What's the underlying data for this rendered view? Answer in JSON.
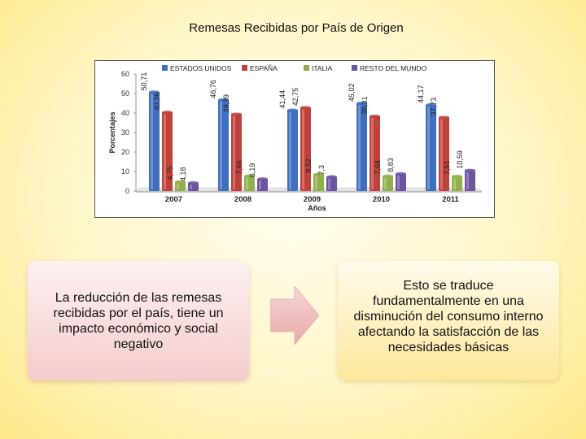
{
  "slide": {
    "title": "Remesas Recibidas por País de Origen",
    "left_text": "La reducción de las remesas recibidas por el país, tiene un impacto económico y social negativo",
    "right_text": "Esto se traduce fundamentalmente en una disminución del consumo interno afectando la satisfacción de las necesidades básicas"
  },
  "colors": {
    "estados_unidos": "#3f6fbf",
    "espana": "#c0403c",
    "italia": "#8fb04a",
    "resto": "#6e54a0",
    "left_box": "#f4cccc",
    "right_box": "#fde79c",
    "arrow": "#e9a9a9"
  },
  "chart_data": {
    "type": "bar",
    "title": "",
    "xlabel": "Años",
    "ylabel": "Porcentajes",
    "ylim": [
      0,
      60
    ],
    "yticks": [
      "0",
      "10",
      "20",
      "30",
      "40",
      "50",
      "60"
    ],
    "categories": [
      "2007",
      "2008",
      "2009",
      "2010",
      "2011"
    ],
    "legend_position": "top",
    "series": [
      {
        "name": "ESTADOS UNIDOS",
        "values": [
          50.71,
          46.76,
          41.44,
          45.02,
          44.17
        ],
        "labels": [
          "50,71",
          "46,76",
          "41,44",
          "45,02",
          "44,17"
        ]
      },
      {
        "name": "ESPAÑA",
        "values": [
          40.36,
          39.39,
          42.75,
          38.31,
          37.73
        ],
        "labels": [
          "40,36",
          "39,39",
          "42,75",
          "38,31",
          "37,73"
        ]
      },
      {
        "name": "ITALIA",
        "values": [
          4.75,
          7.66,
          8.52,
          7.64,
          7.51
        ],
        "labels": [
          "4,75",
          "7,66",
          "8,52",
          "7,64",
          "7,51"
        ]
      },
      {
        "name": "RESTO DEL MUNDO",
        "values": [
          4.18,
          6.19,
          7.3,
          8.83,
          10.59
        ],
        "labels": [
          "4,18",
          "6,19",
          "7,3",
          "8,83",
          "10,59"
        ]
      }
    ]
  }
}
